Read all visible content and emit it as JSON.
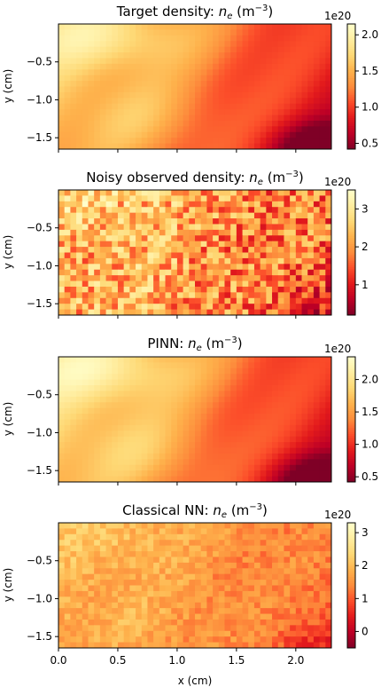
{
  "chart_data": [
    {
      "type": "heatmap",
      "title": "Target density: ",
      "title_math": "n",
      "title_sub": "e",
      "title_unit": " (m",
      "title_exp": "−3",
      "title_close": ")",
      "ylabel": "y (cm)",
      "xlabel": "",
      "xlim": [
        0.0,
        2.3
      ],
      "ylim": [
        -1.65,
        0.0
      ],
      "yticks": [
        "−0.5",
        "−1.0",
        "−1.5"
      ],
      "ytick_values": [
        -0.5,
        -1.0,
        -1.5
      ],
      "colorbar": {
        "ticks": [
          "0.5",
          "1.0",
          "1.5",
          "2.0"
        ],
        "tick_values": [
          0.5,
          1.0,
          1.5,
          2.0
        ],
        "range": [
          0.42,
          2.15
        ],
        "offset": "1e20"
      },
      "colormap": [
        "#7f0026",
        "#bd0026",
        "#e31a1c",
        "#fc4e2a",
        "#fd8d3c",
        "#feb24c",
        "#fed976",
        "#ffeda0",
        "#ffffcc"
      ],
      "pattern": "smooth"
    },
    {
      "type": "heatmap",
      "title": "Noisy observed density: ",
      "title_math": "n",
      "title_sub": "e",
      "title_unit": " (m",
      "title_exp": "−3",
      "title_close": ")",
      "ylabel": "y (cm)",
      "xlabel": "",
      "xlim": [
        0.0,
        2.3
      ],
      "ylim": [
        -1.65,
        0.0
      ],
      "yticks": [
        "−0.5",
        "−1.0",
        "−1.5"
      ],
      "ytick_values": [
        -0.5,
        -1.0,
        -1.5
      ],
      "colorbar": {
        "ticks": [
          "1",
          "2",
          "3"
        ],
        "tick_values": [
          1,
          2,
          3
        ],
        "range": [
          0.2,
          3.5
        ],
        "offset": "1e20"
      },
      "colormap": [
        "#7f0026",
        "#bd0026",
        "#e31a1c",
        "#fc4e2a",
        "#fd8d3c",
        "#feb24c",
        "#fed976",
        "#ffeda0",
        "#ffffcc"
      ],
      "pattern": "noisy"
    },
    {
      "type": "heatmap",
      "title": "PINN: ",
      "title_math": "n",
      "title_sub": "e",
      "title_unit": " (m",
      "title_exp": "−3",
      "title_close": ")",
      "ylabel": "y (cm)",
      "xlabel": "",
      "xlim": [
        0.0,
        2.3
      ],
      "ylim": [
        -1.65,
        0.0
      ],
      "yticks": [
        "−0.5",
        "−1.0",
        "−1.5"
      ],
      "ytick_values": [
        -0.5,
        -1.0,
        -1.5
      ],
      "colorbar": {
        "ticks": [
          "0.5",
          "1.0",
          "1.5",
          "2.0"
        ],
        "tick_values": [
          0.5,
          1.0,
          1.5,
          2.0
        ],
        "range": [
          0.42,
          2.35
        ],
        "offset": "1e20"
      },
      "colormap": [
        "#7f0026",
        "#bd0026",
        "#e31a1c",
        "#fc4e2a",
        "#fd8d3c",
        "#feb24c",
        "#fed976",
        "#ffeda0",
        "#ffffcc"
      ],
      "pattern": "pinn"
    },
    {
      "type": "heatmap",
      "title": "Classical NN: ",
      "title_math": "n",
      "title_sub": "e",
      "title_unit": " (m",
      "title_exp": "−3",
      "title_close": ")",
      "ylabel": "y (cm)",
      "xlabel": "x (cm)",
      "xlim": [
        0.0,
        2.3
      ],
      "ylim": [
        -1.65,
        0.0
      ],
      "xticks": [
        "0.0",
        "0.5",
        "1.0",
        "1.5",
        "2.0"
      ],
      "xtick_values": [
        0.0,
        0.5,
        1.0,
        1.5,
        2.0
      ],
      "yticks": [
        "−0.5",
        "−1.0",
        "−1.5"
      ],
      "ytick_values": [
        -0.5,
        -1.0,
        -1.5
      ],
      "colorbar": {
        "ticks": [
          "0",
          "1",
          "2",
          "3"
        ],
        "tick_values": [
          0,
          1,
          2,
          3
        ],
        "range": [
          -0.5,
          3.3
        ],
        "offset": "1e20"
      },
      "colormap": [
        "#7f0026",
        "#bd0026",
        "#e31a1c",
        "#fc4e2a",
        "#fd8d3c",
        "#feb24c",
        "#fed976",
        "#ffeda0",
        "#ffffcc"
      ],
      "pattern": "classical"
    }
  ]
}
